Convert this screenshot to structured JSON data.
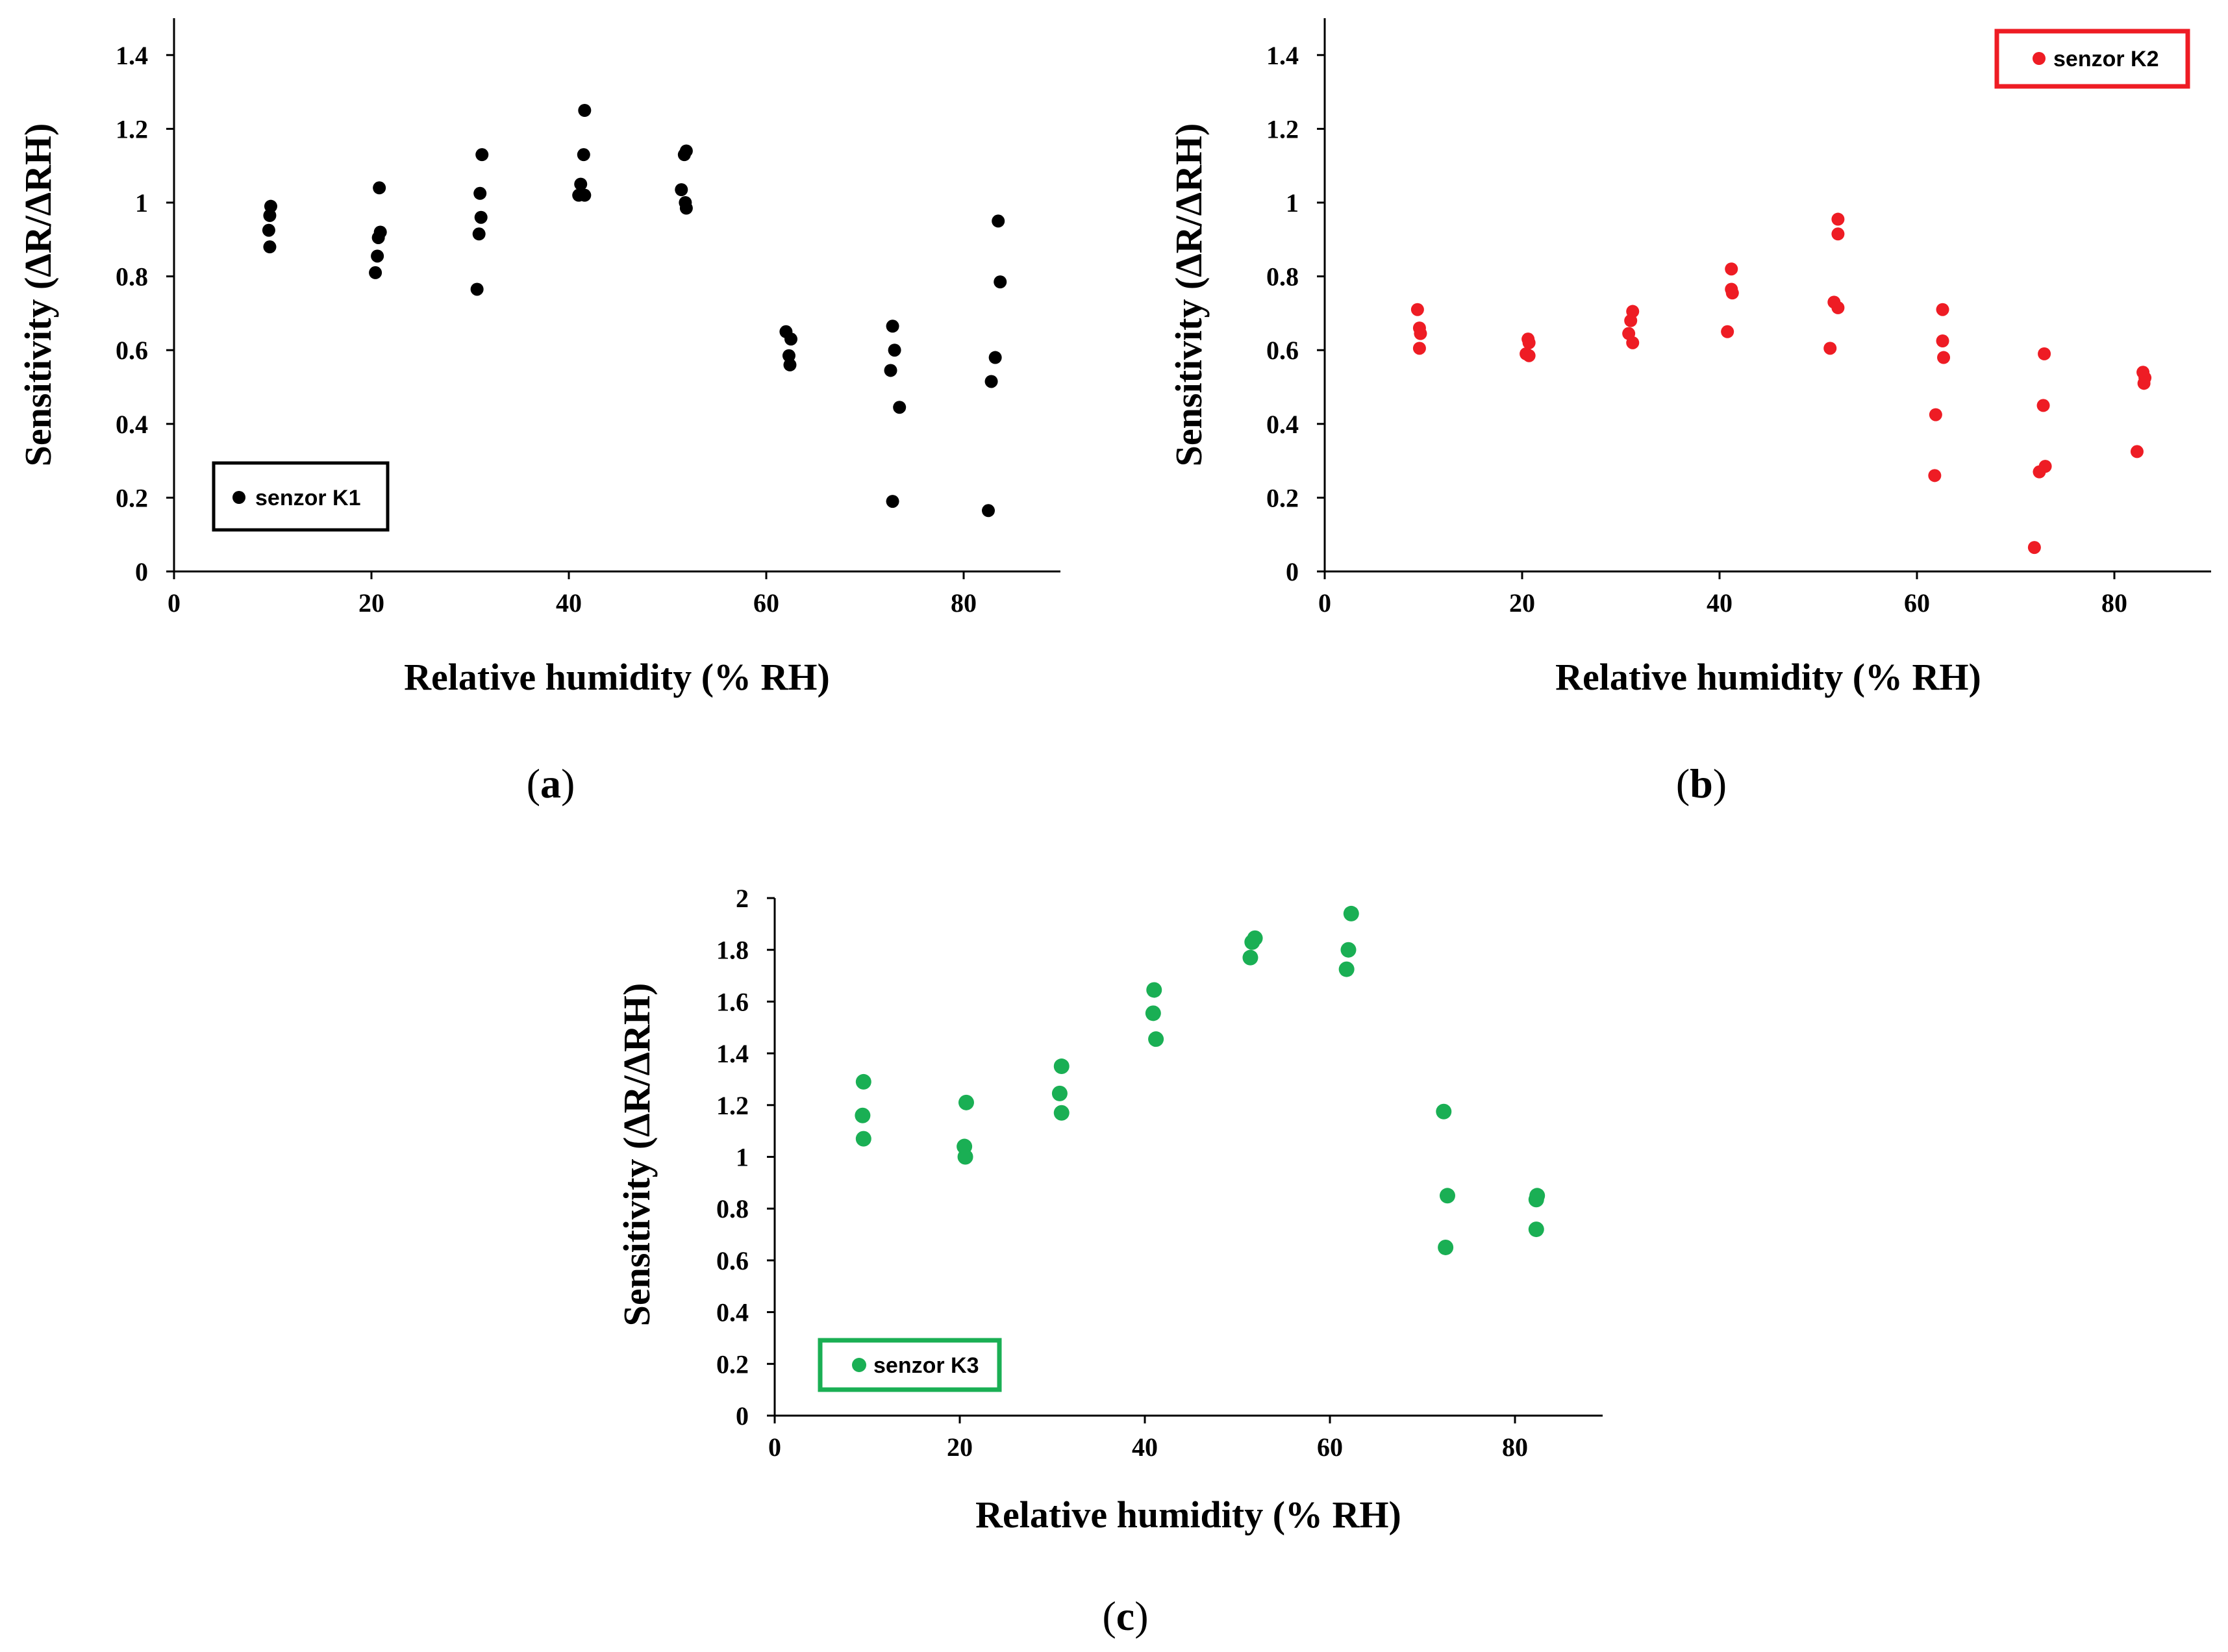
{
  "chart_data": [
    {
      "id": "a",
      "type": "scatter",
      "panel_label": "a",
      "xlabel": "Relative humidity (% RH)",
      "ylabel": "Sensitivity (ΔR/ΔRH)",
      "xlim": [
        0,
        90
      ],
      "ylim": [
        0,
        1.5
      ],
      "xticks": [
        "0",
        "20",
        "40",
        "60",
        "80"
      ],
      "yticks": [
        "0",
        "0.2",
        "0.4",
        "0.6",
        "0.8",
        "1",
        "1.2",
        "1.4"
      ],
      "grid": false,
      "legend": {
        "label": "senzor K1",
        "placement": "bottom-left"
      },
      "series": [
        {
          "name": "senzor K1",
          "color": "#000000",
          "points": [
            [
              9.8,
              0.99
            ],
            [
              9.7,
              0.965
            ],
            [
              9.6,
              0.925
            ],
            [
              9.7,
              0.88
            ],
            [
              20.8,
              1.04
            ],
            [
              20.9,
              0.92
            ],
            [
              20.7,
              0.905
            ],
            [
              20.6,
              0.855
            ],
            [
              20.4,
              0.81
            ],
            [
              31.2,
              1.13
            ],
            [
              31.0,
              1.025
            ],
            [
              31.1,
              0.96
            ],
            [
              30.9,
              0.915
            ],
            [
              30.7,
              0.765
            ],
            [
              41.6,
              1.25
            ],
            [
              41.5,
              1.13
            ],
            [
              41.2,
              1.05
            ],
            [
              41.0,
              1.02
            ],
            [
              41.6,
              1.02
            ],
            [
              51.9,
              1.14
            ],
            [
              51.7,
              1.13
            ],
            [
              51.4,
              1.035
            ],
            [
              51.8,
              1.0
            ],
            [
              51.9,
              0.985
            ],
            [
              62.0,
              0.65
            ],
            [
              62.5,
              0.63
            ],
            [
              62.3,
              0.585
            ],
            [
              62.4,
              0.56
            ],
            [
              72.8,
              0.665
            ],
            [
              73.0,
              0.6
            ],
            [
              72.6,
              0.545
            ],
            [
              73.5,
              0.445
            ],
            [
              72.8,
              0.19
            ],
            [
              83.5,
              0.95
            ],
            [
              83.7,
              0.785
            ],
            [
              83.2,
              0.58
            ],
            [
              82.8,
              0.515
            ],
            [
              82.5,
              0.165
            ]
          ]
        }
      ]
    },
    {
      "id": "b",
      "type": "scatter",
      "panel_label": "b",
      "xlabel": "Relative humidity (% RH)",
      "ylabel": "Sensitivity (ΔR/ΔRH)",
      "xlim": [
        0,
        90
      ],
      "ylim": [
        0,
        1.5
      ],
      "xticks": [
        "0",
        "20",
        "40",
        "60",
        "80"
      ],
      "yticks": [
        "0",
        "0.2",
        "0.4",
        "0.6",
        "0.8",
        "1",
        "1.2",
        "1.4"
      ],
      "grid": false,
      "legend": {
        "label": "senzor K2",
        "placement": "top-right"
      },
      "series": [
        {
          "name": "senzor K2",
          "color": "#ee1c24",
          "points": [
            [
              9.4,
              0.71
            ],
            [
              9.6,
              0.66
            ],
            [
              9.7,
              0.645
            ],
            [
              9.6,
              0.605
            ],
            [
              20.6,
              0.63
            ],
            [
              20.7,
              0.62
            ],
            [
              20.4,
              0.59
            ],
            [
              20.7,
              0.585
            ],
            [
              31.2,
              0.705
            ],
            [
              31.0,
              0.68
            ],
            [
              30.8,
              0.645
            ],
            [
              31.2,
              0.62
            ],
            [
              41.2,
              0.82
            ],
            [
              41.2,
              0.765
            ],
            [
              41.3,
              0.755
            ],
            [
              40.8,
              0.65
            ],
            [
              52.0,
              0.955
            ],
            [
              52.0,
              0.915
            ],
            [
              51.6,
              0.73
            ],
            [
              52.0,
              0.715
            ],
            [
              51.2,
              0.605
            ],
            [
              62.6,
              0.71
            ],
            [
              62.6,
              0.625
            ],
            [
              62.7,
              0.58
            ],
            [
              61.9,
              0.425
            ],
            [
              61.8,
              0.26
            ],
            [
              72.9,
              0.59
            ],
            [
              72.8,
              0.45
            ],
            [
              73.0,
              0.285
            ],
            [
              72.4,
              0.27
            ],
            [
              71.9,
              0.065
            ],
            [
              82.9,
              0.54
            ],
            [
              83.1,
              0.525
            ],
            [
              83.0,
              0.51
            ],
            [
              82.3,
              0.325
            ]
          ]
        }
      ]
    },
    {
      "id": "c",
      "type": "scatter",
      "panel_label": "c",
      "xlabel": "Relative humidity (% RH)",
      "ylabel": "Sensitivity (ΔR/ΔRH)",
      "xlim": [
        0,
        90
      ],
      "ylim": [
        0,
        2
      ],
      "xticks": [
        "0",
        "20",
        "40",
        "60",
        "80"
      ],
      "yticks": [
        "0",
        "0.2",
        "0.4",
        "0.6",
        "0.8",
        "1",
        "1.2",
        "1.4",
        "1.6",
        "1.8",
        "2"
      ],
      "grid": false,
      "legend": {
        "label": "senzor K3",
        "placement": "bottom-left"
      },
      "series": [
        {
          "name": "senzor K3",
          "color": "#1aaf54",
          "points": [
            [
              9.6,
              1.29
            ],
            [
              9.5,
              1.16
            ],
            [
              9.6,
              1.07
            ],
            [
              20.7,
              1.21
            ],
            [
              20.5,
              1.04
            ],
            [
              20.6,
              1.0
            ],
            [
              31.0,
              1.35
            ],
            [
              30.8,
              1.245
            ],
            [
              31.0,
              1.17
            ],
            [
              41.0,
              1.645
            ],
            [
              40.9,
              1.555
            ],
            [
              41.2,
              1.455
            ],
            [
              51.9,
              1.845
            ],
            [
              51.6,
              1.83
            ],
            [
              51.4,
              1.77
            ],
            [
              62.3,
              1.94
            ],
            [
              62.0,
              1.8
            ],
            [
              61.8,
              1.725
            ],
            [
              72.3,
              1.175
            ],
            [
              72.7,
              0.85
            ],
            [
              72.5,
              0.65
            ],
            [
              82.4,
              0.85
            ],
            [
              82.3,
              0.835
            ],
            [
              82.3,
              0.72
            ]
          ]
        }
      ]
    }
  ]
}
